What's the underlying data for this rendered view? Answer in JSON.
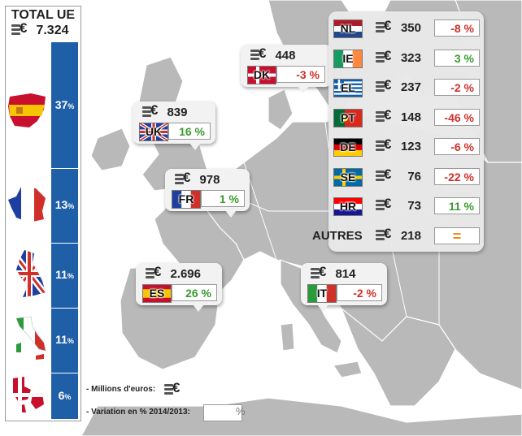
{
  "total": {
    "label": "TOTAL UE",
    "value": "7.324"
  },
  "share_bar": [
    {
      "country": "ES",
      "value": "37",
      "unit": "%"
    },
    {
      "country": "FR",
      "value": "13",
      "unit": "%"
    },
    {
      "country": "UK",
      "value": "11",
      "unit": "%"
    },
    {
      "country": "IT",
      "value": "11",
      "unit": "%"
    },
    {
      "country": "DK",
      "value": "6",
      "unit": "%"
    }
  ],
  "callouts": [
    {
      "code": "DK",
      "amount": "448",
      "variation": "-3 %"
    },
    {
      "code": "UK",
      "amount": "839",
      "variation": "16 %"
    },
    {
      "code": "FR",
      "amount": "978",
      "variation": "1 %"
    },
    {
      "code": "ES",
      "amount": "2.696",
      "variation": "26 %"
    },
    {
      "code": "IT",
      "amount": "814",
      "variation": "-2 %"
    }
  ],
  "table": [
    {
      "code": "NL",
      "amount": "350",
      "variation": "-8 %"
    },
    {
      "code": "IE",
      "amount": "323",
      "variation": "3 %"
    },
    {
      "code": "EL",
      "amount": "237",
      "variation": "-2 %"
    },
    {
      "code": "PT",
      "amount": "148",
      "variation": "-46 %"
    },
    {
      "code": "DE",
      "amount": "123",
      "variation": "-6 %"
    },
    {
      "code": "SE",
      "amount": "76",
      "variation": "-22 %"
    },
    {
      "code": "HR",
      "amount": "73",
      "variation": "11 %"
    },
    {
      "code": "AUTRES",
      "amount": "218",
      "variation": "="
    }
  ],
  "legend": {
    "millions": "- Millions d'euros:",
    "variation": "- Variation en % 2014/2013:",
    "pct_symbol": "%"
  },
  "colors": {
    "bar": "#1f5fa8",
    "positive": "#3a9a2e",
    "negative": "#d0302a",
    "neutral": "#f08a1a",
    "map_land": "#b9b9b9",
    "map_sea": "#ffffff"
  },
  "chart_data": {
    "type": "bar",
    "title": "TOTAL UE",
    "total_value": 7324,
    "units": "Millions d'euros",
    "categories": [
      "ES",
      "FR",
      "UK",
      "IT",
      "DK"
    ],
    "share_percent": [
      37,
      13,
      11,
      11,
      6
    ],
    "amounts": {
      "ES": 2696,
      "FR": 978,
      "UK": 839,
      "IT": 814,
      "DK": 448,
      "NL": 350,
      "IE": 323,
      "EL": 237,
      "PT": 148,
      "DE": 123,
      "SE": 76,
      "HR": 73,
      "AUTRES": 218
    },
    "variation_2014_2013_percent": {
      "ES": 26,
      "FR": 1,
      "UK": 16,
      "IT": -2,
      "DK": -3,
      "NL": -8,
      "IE": 3,
      "EL": -2,
      "PT": -46,
      "DE": -6,
      "SE": -22,
      "HR": 11,
      "AUTRES": 0
    }
  }
}
